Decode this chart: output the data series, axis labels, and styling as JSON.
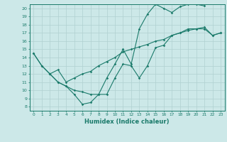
{
  "xlabel": "Humidex (Indice chaleur)",
  "background_color": "#cce8e8",
  "line_color": "#1a7a6a",
  "grid_color": "#b0d0d0",
  "xlim": [
    -0.5,
    23.5
  ],
  "ylim": [
    7.5,
    20.5
  ],
  "yticks": [
    8,
    9,
    10,
    11,
    12,
    13,
    14,
    15,
    16,
    17,
    18,
    19,
    20
  ],
  "xticks": [
    0,
    1,
    2,
    3,
    4,
    5,
    6,
    7,
    8,
    9,
    10,
    11,
    12,
    13,
    14,
    15,
    16,
    17,
    18,
    19,
    20,
    21,
    22,
    23
  ],
  "series": [
    {
      "x": [
        0,
        1,
        2,
        3,
        4,
        5,
        6,
        7,
        8,
        9,
        10,
        11,
        12,
        13,
        14,
        15,
        16,
        17,
        18,
        19,
        20,
        21
      ],
      "y": [
        14.5,
        13.0,
        12.0,
        11.0,
        10.5,
        9.5,
        8.3,
        8.5,
        9.5,
        11.5,
        13.2,
        15.0,
        13.2,
        17.5,
        19.3,
        20.5,
        20.0,
        19.5,
        20.2,
        20.5,
        20.5,
        20.3
      ]
    },
    {
      "x": [
        2,
        3,
        4,
        5,
        6,
        7,
        8,
        9,
        10,
        11,
        12,
        13,
        14,
        15,
        16,
        17,
        18,
        19,
        20,
        21,
        22,
        23
      ],
      "y": [
        12.0,
        11.0,
        10.5,
        10.0,
        9.8,
        9.5,
        9.5,
        9.5,
        11.5,
        13.2,
        13.0,
        11.5,
        13.0,
        15.2,
        15.5,
        16.7,
        17.0,
        17.5,
        17.5,
        17.7,
        16.7,
        17.0
      ]
    },
    {
      "x": [
        0,
        1,
        2,
        3,
        4,
        5,
        6,
        7,
        8,
        9,
        10,
        11,
        12,
        13,
        14,
        15,
        16,
        17,
        18,
        19,
        20,
        21,
        22,
        23
      ],
      "y": [
        14.5,
        13.0,
        12.0,
        12.5,
        11.0,
        11.5,
        12.0,
        12.3,
        13.0,
        13.5,
        14.0,
        14.7,
        15.0,
        15.3,
        15.6,
        16.0,
        16.2,
        16.7,
        17.0,
        17.3,
        17.5,
        17.5,
        16.7,
        17.0
      ]
    }
  ]
}
